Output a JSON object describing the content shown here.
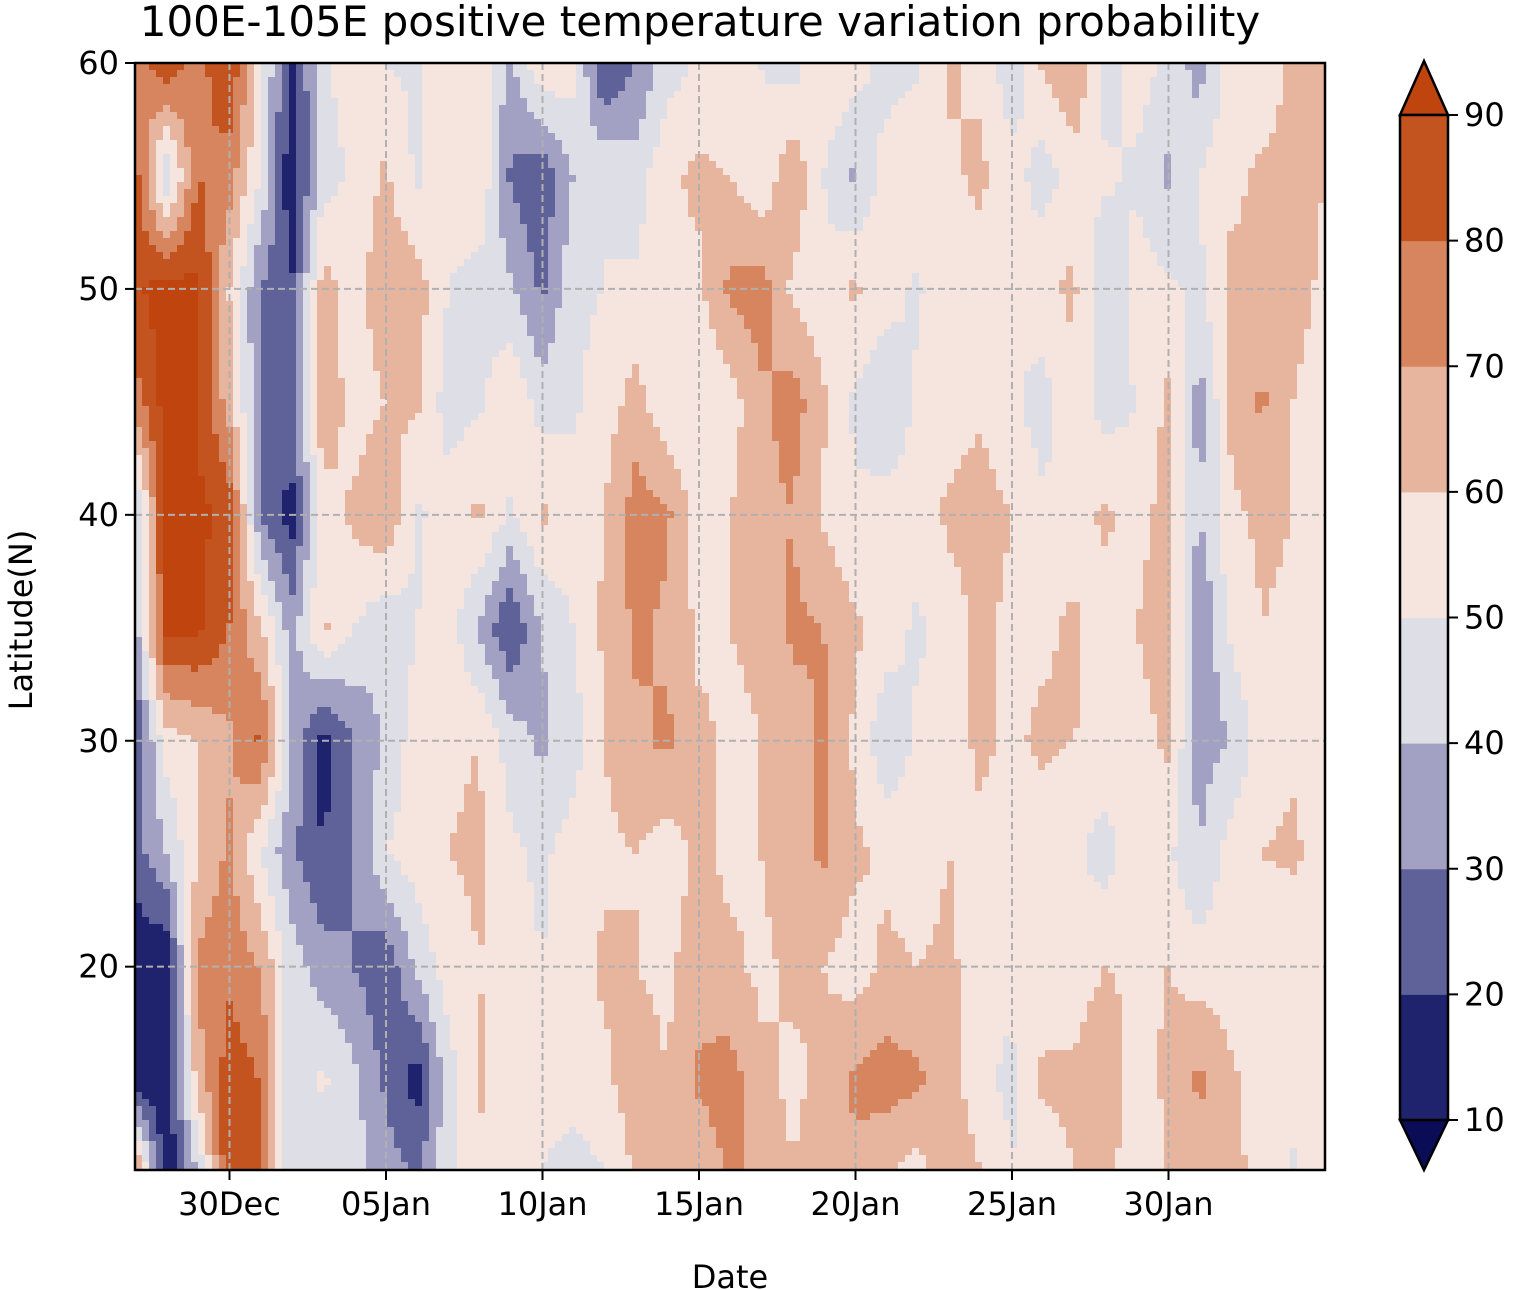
{
  "chart_data": {
    "type": "heatmap",
    "title": "100E-105E positive temperature variation probability",
    "xlabel": "Date",
    "ylabel": "Latitude(N)",
    "x_ticks": [
      "30Dec",
      "05Jan",
      "10Jan",
      "15Jan",
      "20Jan",
      "25Jan",
      "30Jan"
    ],
    "y_ticks": [
      "20",
      "30",
      "40",
      "50",
      "60"
    ],
    "ylim": [
      11,
      60
    ],
    "grid": true,
    "colorbar": {
      "levels": [
        10,
        20,
        30,
        40,
        50,
        60,
        70,
        80,
        90
      ],
      "tick_labels": [
        "10",
        "20",
        "30",
        "40",
        "50",
        "60",
        "70",
        "80",
        "90"
      ],
      "colors": [
        "#0a0c58",
        "#1f236e",
        "#5f6199",
        "#a2a1c4",
        "#dedee7",
        "#f6e5de",
        "#e7b49d",
        "#d7855f",
        "#c3541f",
        "#c0440d"
      ],
      "extend": "both"
    },
    "latitudes": [
      60,
      55,
      50,
      45,
      40,
      35,
      30,
      25,
      20,
      15,
      11
    ],
    "dates": [
      "27Dec",
      "28Dec",
      "29Dec",
      "30Dec",
      "31Dec",
      "01Jan",
      "02Jan",
      "03Jan",
      "04Jan",
      "05Jan",
      "06Jan",
      "07Jan",
      "08Jan",
      "09Jan",
      "10Jan",
      "11Jan",
      "12Jan",
      "13Jan",
      "14Jan",
      "15Jan",
      "16Jan",
      "17Jan",
      "18Jan",
      "19Jan",
      "20Jan",
      "21Jan",
      "22Jan",
      "23Jan",
      "24Jan",
      "25Jan",
      "26Jan",
      "27Jan",
      "28Jan",
      "29Jan",
      "30Jan",
      "31Jan",
      "01Feb",
      "02Feb",
      "03Feb"
    ],
    "values": [
      [
        72,
        88,
        75,
        90,
        55,
        15,
        48,
        56,
        50,
        48,
        60,
        55,
        38,
        60,
        55,
        18,
        30,
        45,
        52,
        55,
        50,
        45,
        58,
        55,
        45,
        48,
        62,
        58,
        42,
        62,
        70,
        45,
        55,
        48,
        35,
        55,
        52,
        62,
        60
      ],
      [
        85,
        40,
        80,
        75,
        50,
        12,
        45,
        52,
        62,
        48,
        55,
        60,
        28,
        22,
        40,
        50,
        45,
        58,
        62,
        60,
        52,
        68,
        50,
        38,
        55,
        60,
        58,
        62,
        55,
        45,
        55,
        52,
        48,
        38,
        50,
        58,
        62,
        65,
        60
      ],
      [
        88,
        95,
        92,
        60,
        30,
        20,
        65,
        55,
        68,
        65,
        50,
        45,
        42,
        28,
        48,
        50,
        52,
        58,
        58,
        72,
        75,
        58,
        52,
        62,
        55,
        48,
        60,
        55,
        50,
        58,
        62,
        40,
        55,
        52,
        48,
        62,
        60,
        64,
        58
      ],
      [
        75,
        95,
        90,
        65,
        30,
        28,
        68,
        55,
        60,
        62,
        45,
        48,
        60,
        45,
        48,
        55,
        64,
        52,
        50,
        55,
        68,
        75,
        62,
        48,
        40,
        52,
        55,
        58,
        52,
        45,
        58,
        45,
        50,
        62,
        35,
        62,
        72,
        60,
        55
      ],
      [
        35,
        93,
        92,
        88,
        30,
        15,
        55,
        62,
        70,
        48,
        55,
        62,
        48,
        62,
        55,
        60,
        75,
        72,
        55,
        60,
        66,
        70,
        58,
        52,
        55,
        55,
        62,
        65,
        60,
        52,
        55,
        62,
        55,
        65,
        40,
        58,
        62,
        60,
        55
      ],
      [
        35,
        92,
        92,
        80,
        62,
        35,
        62,
        50,
        42,
        50,
        55,
        38,
        20,
        40,
        50,
        62,
        72,
        68,
        58,
        60,
        62,
        72,
        70,
        62,
        55,
        48,
        55,
        62,
        58,
        58,
        62,
        55,
        60,
        68,
        28,
        52,
        60,
        58,
        55
      ],
      [
        20,
        55,
        60,
        68,
        82,
        40,
        15,
        30,
        42,
        55,
        58,
        60,
        45,
        38,
        45,
        60,
        68,
        72,
        62,
        58,
        60,
        65,
        72,
        58,
        42,
        52,
        55,
        62,
        58,
        62,
        60,
        58,
        55,
        62,
        35,
        40,
        55,
        58,
        55
      ],
      [
        25,
        40,
        60,
        72,
        50,
        32,
        20,
        30,
        50,
        55,
        60,
        62,
        52,
        48,
        55,
        58,
        60,
        55,
        62,
        58,
        60,
        66,
        72,
        62,
        58,
        55,
        60,
        58,
        55,
        55,
        52,
        45,
        58,
        52,
        40,
        55,
        60,
        62,
        55
      ],
      [
        12,
        10,
        72,
        78,
        70,
        45,
        35,
        30,
        22,
        42,
        55,
        60,
        55,
        50,
        55,
        62,
        60,
        58,
        65,
        62,
        58,
        62,
        60,
        55,
        62,
        60,
        62,
        55,
        52,
        55,
        55,
        60,
        58,
        60,
        55,
        55,
        55,
        50,
        55
      ],
      [
        12,
        10,
        65,
        85,
        80,
        42,
        52,
        42,
        28,
        15,
        45,
        62,
        52,
        55,
        55,
        58,
        65,
        60,
        72,
        75,
        62,
        58,
        62,
        72,
        75,
        72,
        65,
        52,
        48,
        62,
        62,
        68,
        55,
        62,
        72,
        62,
        55,
        55,
        55
      ],
      [
        75,
        12,
        40,
        90,
        85,
        40,
        40,
        45,
        35,
        28,
        48,
        58,
        55,
        50,
        45,
        50,
        62,
        60,
        62,
        72,
        68,
        60,
        65,
        68,
        62,
        55,
        70,
        60,
        50,
        55,
        60,
        62,
        55,
        60,
        66,
        62,
        58,
        48,
        58
      ]
    ]
  }
}
